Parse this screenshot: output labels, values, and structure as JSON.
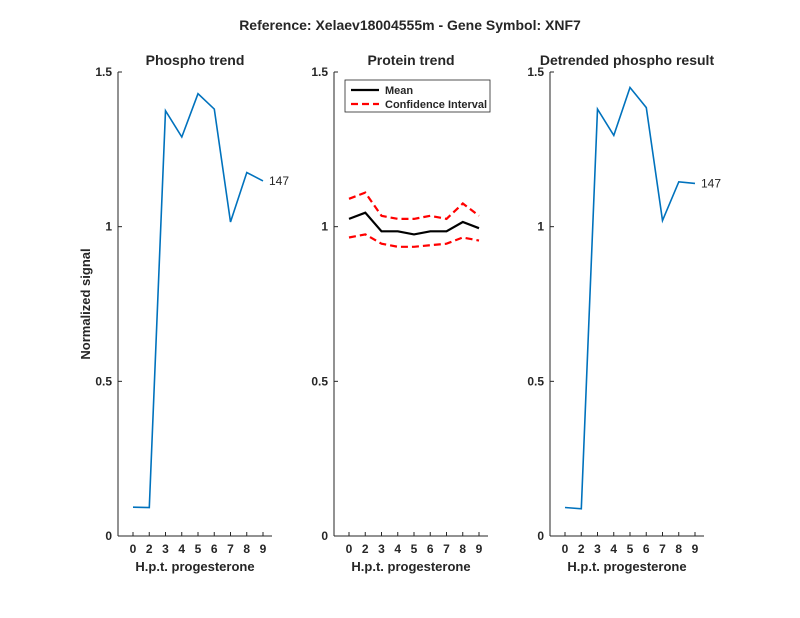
{
  "figure": {
    "title": "Reference:  Xelaev18004555m - Gene Symbol:  XNF7",
    "colors": {
      "phospho": "#0072BD",
      "mean": "#000000",
      "ci": "#FF0000",
      "axis": "#262626"
    }
  },
  "chart_data": [
    {
      "type": "line",
      "title": "Phospho trend",
      "xlabel": "H.p.t. progesterone",
      "ylabel": "Normalized signal",
      "categories": [
        "0",
        "2",
        "3",
        "4",
        "5",
        "6",
        "7",
        "8",
        "9"
      ],
      "ylim": [
        0,
        1.5
      ],
      "yticks": [
        "0",
        "0.5",
        "1",
        "1.5"
      ],
      "grid": false,
      "series": [
        {
          "values": [
            0.093,
            0.092,
            1.375,
            1.29,
            1.43,
            1.38,
            1.015,
            1.175,
            1.148
          ]
        }
      ],
      "end_label": "147"
    },
    {
      "type": "line",
      "title": "Protein trend",
      "xlabel": "H.p.t. progesterone",
      "ylabel": "",
      "categories": [
        "0",
        "2",
        "3",
        "4",
        "5",
        "6",
        "7",
        "8",
        "9"
      ],
      "ylim": [
        0,
        1.5
      ],
      "yticks": [
        "0",
        "0.5",
        "1",
        "1.5"
      ],
      "grid": false,
      "legend": {
        "placement": "top-left",
        "entries": [
          "Mean",
          "Confidence Interval"
        ]
      },
      "series": [
        {
          "name": "Mean",
          "values": [
            1.025,
            1.045,
            0.985,
            0.985,
            0.975,
            0.985,
            0.985,
            1.015,
            0.995
          ]
        },
        {
          "name": "Confidence Interval",
          "values": [
            1.09,
            1.11,
            1.035,
            1.025,
            1.025,
            1.035,
            1.025,
            1.075,
            1.035
          ]
        },
        {
          "name": "Confidence Interval",
          "values": [
            0.965,
            0.975,
            0.945,
            0.935,
            0.935,
            0.94,
            0.945,
            0.965,
            0.955
          ]
        }
      ]
    },
    {
      "type": "line",
      "title": "Detrended phospho result",
      "xlabel": "H.p.t. progesterone",
      "ylabel": "",
      "categories": [
        "0",
        "2",
        "3",
        "4",
        "5",
        "6",
        "7",
        "8",
        "9"
      ],
      "ylim": [
        0,
        1.5
      ],
      "yticks": [
        "0",
        "0.5",
        "1",
        "1.5"
      ],
      "grid": false,
      "series": [
        {
          "values": [
            0.092,
            0.088,
            1.38,
            1.295,
            1.45,
            1.385,
            1.02,
            1.145,
            1.14
          ]
        }
      ],
      "end_label": "147"
    }
  ]
}
